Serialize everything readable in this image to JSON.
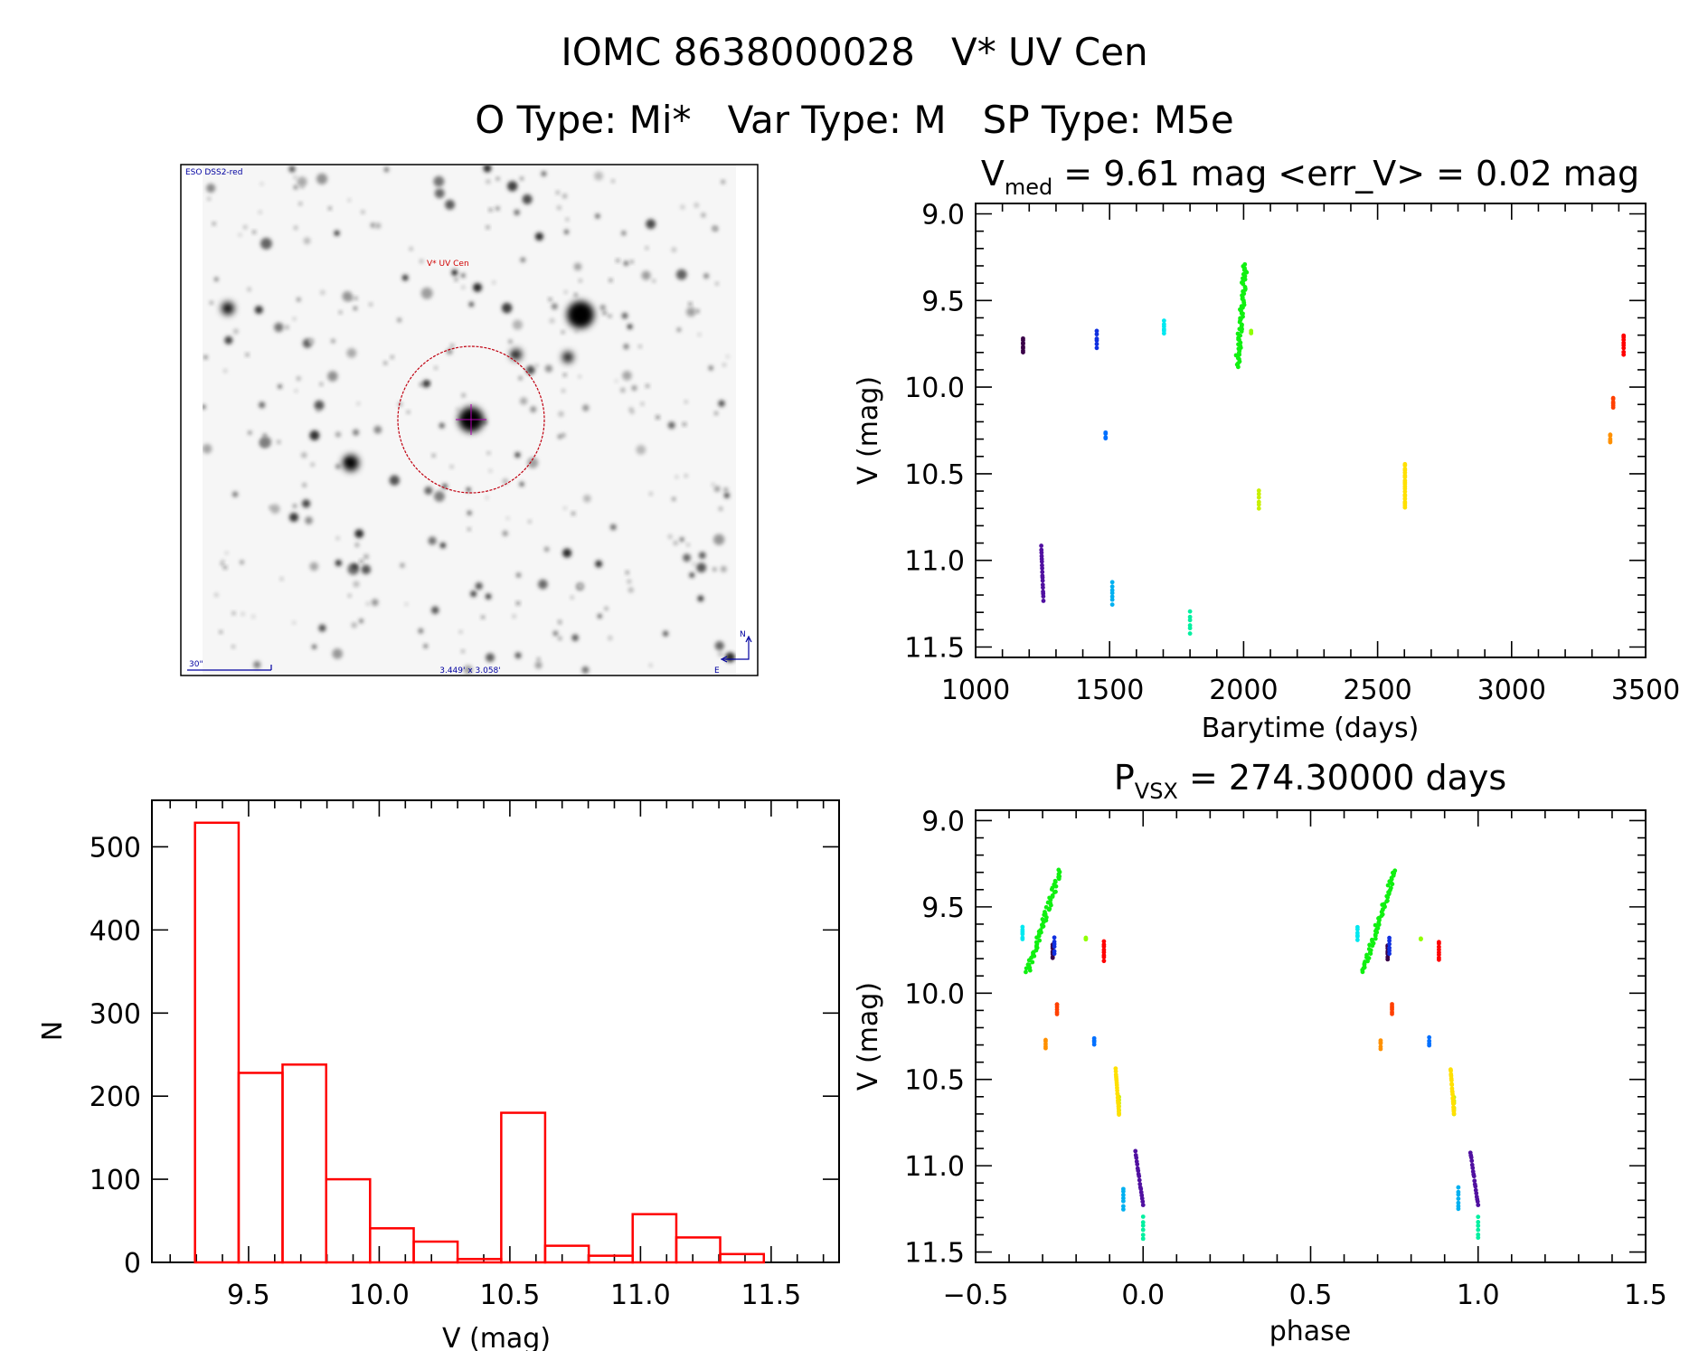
{
  "header": {
    "line1": "IOMC 8638000028   V* UV Cen",
    "line2": "O Type: Mi*   Var Type: M   SP Type: M5e"
  },
  "finder": {
    "survey": "ESO DSS2-red",
    "target_label": "V* UV Cen",
    "scale_label": "30\"",
    "fov_label": "3.449' x 3.058'",
    "north": "N",
    "east": "E"
  },
  "chart_data": [
    {
      "type": "bar",
      "title": "",
      "xlabel": "V (mag)",
      "ylabel": "N",
      "xlim": [
        9.13,
        11.76
      ],
      "ylim": [
        0,
        556
      ],
      "bin_edges": [
        9.295,
        9.462,
        9.63,
        9.797,
        9.965,
        10.132,
        10.3,
        10.467,
        10.635,
        10.802,
        10.97,
        11.137,
        11.305,
        11.472
      ],
      "values": [
        529,
        228,
        238,
        100,
        41,
        25,
        4,
        180,
        20,
        8,
        58,
        30,
        10
      ],
      "color": "#ff0000",
      "xticks": [
        "9.5",
        "10.0",
        "10.5",
        "11.0",
        "11.5"
      ],
      "yticks": [
        "0",
        "100",
        "200",
        "300",
        "400",
        "500"
      ]
    },
    {
      "type": "scatter",
      "title_main": "V",
      "title_sub": "med",
      "title_rest": " = 9.61 mag <err_V> = 0.02 mag",
      "xlabel": "Barytime (days)",
      "ylabel": "V (mag)",
      "xlim": [
        1000,
        3500
      ],
      "ylim": [
        8.94,
        11.56
      ],
      "y_inverted": true,
      "xticks": [
        "1000",
        "1500",
        "2000",
        "2500",
        "3000",
        "3500"
      ],
      "yticks": [
        "9.0",
        "9.5",
        "10.0",
        "10.5",
        "11.0",
        "11.5"
      ],
      "series": [
        {
          "x": [
            1177,
            1177
          ],
          "v": [
            9.72,
            9.8
          ],
          "color": "#3a0048",
          "n": 8
        },
        {
          "x": [
            1245,
            1253
          ],
          "v": [
            10.92,
            11.23
          ],
          "color": "#5010a0",
          "n": 18
        },
        {
          "x": [
            1452,
            1452
          ],
          "v": [
            9.68,
            9.77
          ],
          "color": "#1030e0",
          "n": 6
        },
        {
          "x": [
            1485,
            1485
          ],
          "v": [
            10.26,
            10.3
          ],
          "color": "#0070ff",
          "n": 4
        },
        {
          "x": [
            1510,
            1510
          ],
          "v": [
            11.13,
            11.25
          ],
          "color": "#00b0f0",
          "n": 7
        },
        {
          "x": [
            1703,
            1703
          ],
          "v": [
            9.62,
            9.69
          ],
          "color": "#00e8f0",
          "n": 6
        },
        {
          "x": [
            1800,
            1800
          ],
          "v": [
            11.3,
            11.42
          ],
          "color": "#00f0a0",
          "n": 6
        },
        {
          "x": [
            1977,
            2007
          ],
          "v": [
            9.88,
            9.29
          ],
          "color": "#10f010",
          "n": 60
        },
        {
          "x": [
            2028,
            2028
          ],
          "v": [
            9.68,
            9.69
          ],
          "color": "#90ff00",
          "n": 3
        },
        {
          "x": [
            2057,
            2057
          ],
          "v": [
            10.6,
            10.7
          ],
          "color": "#c8f000",
          "n": 6
        },
        {
          "x": [
            2602,
            2602
          ],
          "v": [
            10.44,
            10.7
          ],
          "color": "#ffe000",
          "n": 20
        },
        {
          "x": [
            3368,
            3368
          ],
          "v": [
            10.27,
            10.32
          ],
          "color": "#ff9000",
          "n": 5
        },
        {
          "x": [
            3379,
            3379
          ],
          "v": [
            10.06,
            10.12
          ],
          "color": "#ff4000",
          "n": 6
        },
        {
          "x": [
            3418,
            3418
          ],
          "v": [
            9.7,
            9.81
          ],
          "color": "#ff0000",
          "n": 8
        }
      ]
    },
    {
      "type": "scatter",
      "title_main": "P",
      "title_sub": "VSX",
      "title_rest": " = 274.30000 days",
      "xlabel": "phase",
      "ylabel": "V (mag)",
      "xlim": [
        -0.5,
        1.5
      ],
      "ylim": [
        8.94,
        11.56
      ],
      "y_inverted": true,
      "xticks": [
        "−0.5",
        "0.0",
        "0.5",
        "1.0",
        "1.5"
      ],
      "yticks": [
        "9.0",
        "9.5",
        "10.0",
        "10.5",
        "11.0",
        "11.5"
      ],
      "period_days": 274.3,
      "repeat_offset": 1.0,
      "series": [
        {
          "x": [
            -0.27,
            -0.27
          ],
          "v": [
            9.72,
            9.8
          ],
          "color": "#3a0048",
          "n": 8
        },
        {
          "x": [
            -0.023,
            0.0
          ],
          "v": [
            10.92,
            11.23
          ],
          "color": "#5010a0",
          "n": 18
        },
        {
          "x": [
            -0.265,
            -0.265
          ],
          "v": [
            9.68,
            9.77
          ],
          "color": "#1030e0",
          "n": 6
        },
        {
          "x": [
            -0.146,
            -0.146
          ],
          "v": [
            10.26,
            10.3
          ],
          "color": "#0070ff",
          "n": 4
        },
        {
          "x": [
            -0.059,
            -0.059
          ],
          "v": [
            11.13,
            11.25
          ],
          "color": "#00b0f0",
          "n": 7
        },
        {
          "x": [
            -0.36,
            -0.36
          ],
          "v": [
            9.62,
            9.69
          ],
          "color": "#00e8f0",
          "n": 6
        },
        {
          "x": [
            0.0,
            0.0
          ],
          "v": [
            11.3,
            11.42
          ],
          "color": "#00f0a0",
          "n": 6
        },
        {
          "x": [
            -0.345,
            -0.248
          ],
          "v": [
            9.88,
            9.29
          ],
          "color": "#10f010",
          "n": 60
        },
        {
          "x": [
            -0.171,
            -0.171
          ],
          "v": [
            9.68,
            9.69
          ],
          "color": "#90ff00",
          "n": 3
        },
        {
          "x": [
            -0.072,
            -0.072
          ],
          "v": [
            10.6,
            10.7
          ],
          "color": "#c8f000",
          "n": 6
        },
        {
          "x": [
            -0.082,
            -0.072
          ],
          "v": [
            10.44,
            10.7
          ],
          "color": "#ffe000",
          "n": 20
        },
        {
          "x": [
            -0.291,
            -0.291
          ],
          "v": [
            10.27,
            10.32
          ],
          "color": "#ff9000",
          "n": 5
        },
        {
          "x": [
            -0.257,
            -0.257
          ],
          "v": [
            10.06,
            10.12
          ],
          "color": "#ff4000",
          "n": 6
        },
        {
          "x": [
            -0.117,
            -0.117
          ],
          "v": [
            9.7,
            9.81
          ],
          "color": "#ff0000",
          "n": 8
        }
      ]
    }
  ]
}
